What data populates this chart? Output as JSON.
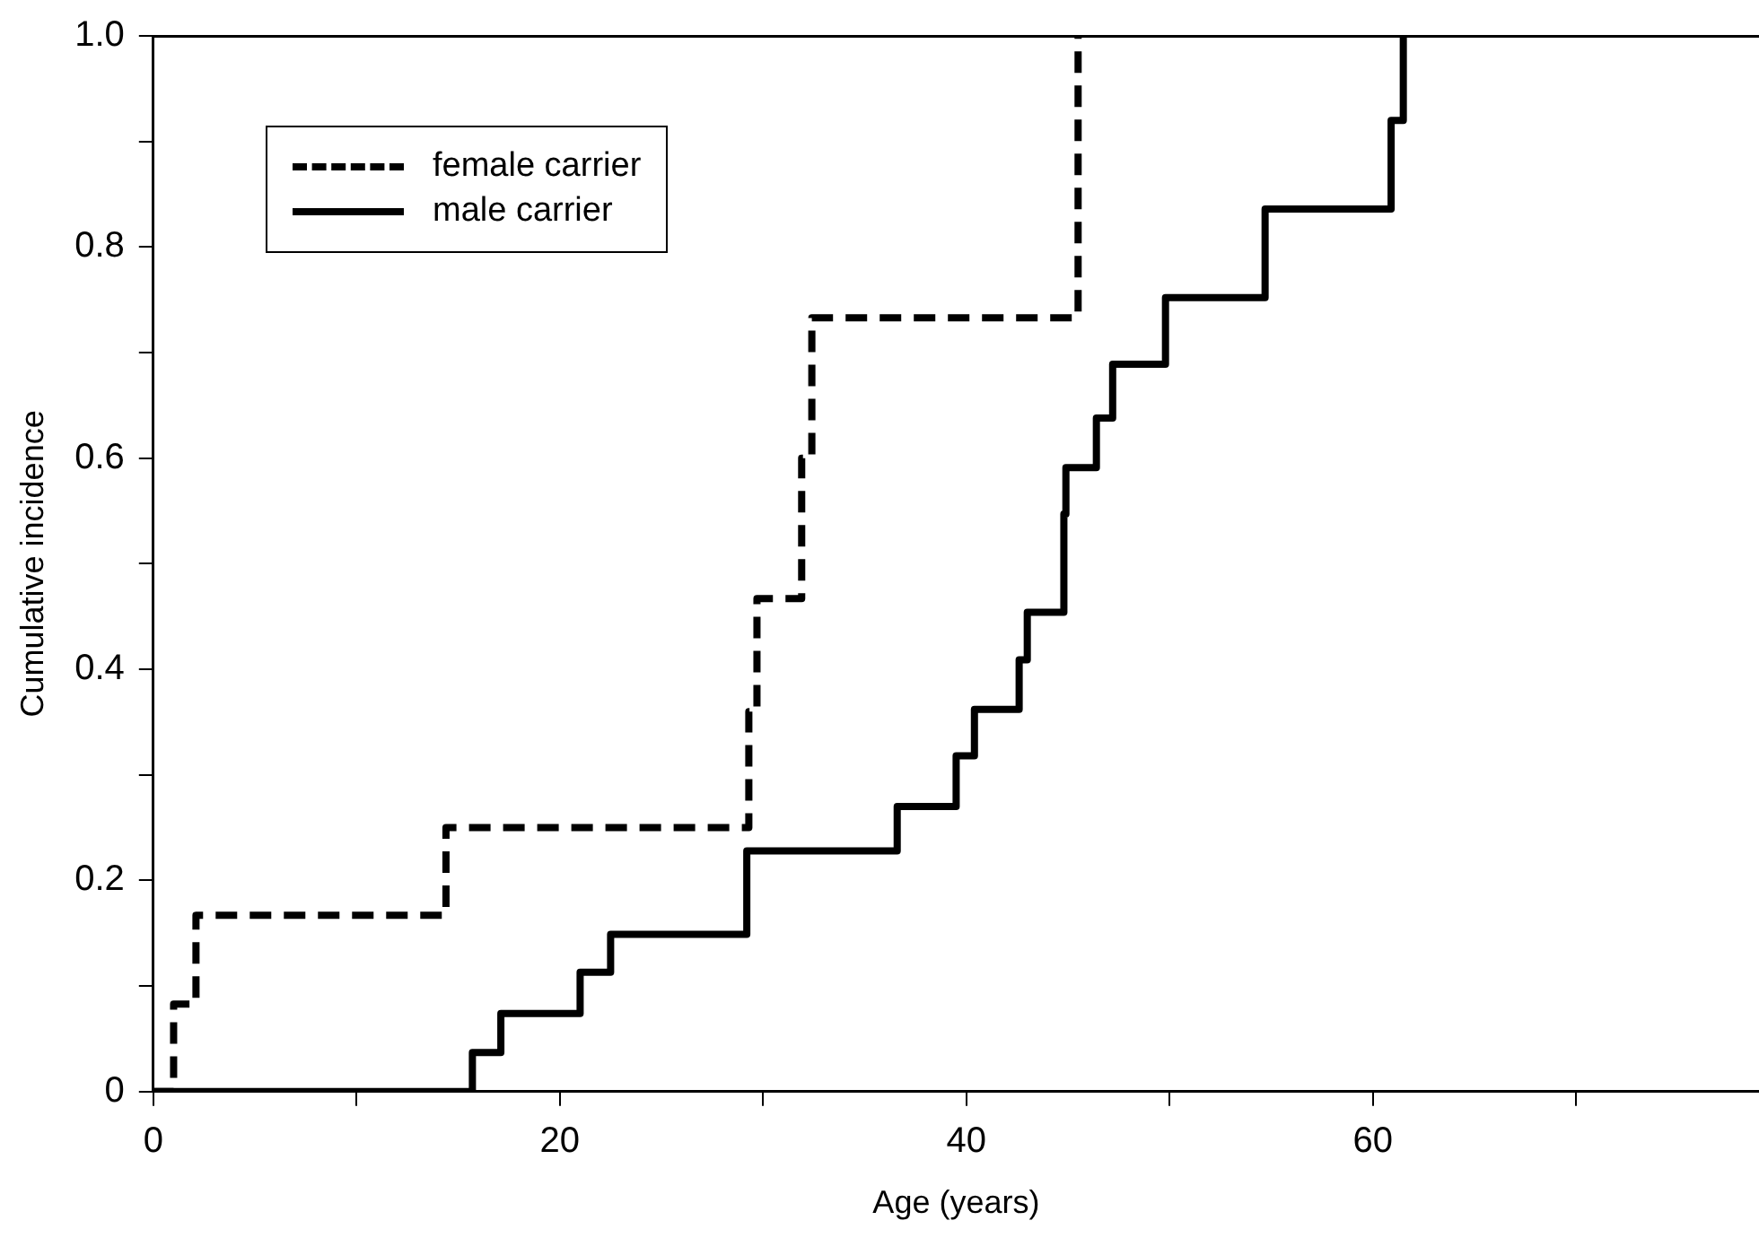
{
  "chart_data": {
    "type": "step",
    "xlabel": "Age (years)",
    "ylabel": "Cumulative incidence",
    "xlim": [
      0,
      79
    ],
    "xticks": [
      0,
      {
        "value": 10,
        "label": null
      },
      20,
      {
        "value": 30,
        "label": null
      },
      40,
      {
        "value": 50,
        "label": null
      },
      60,
      {
        "value": 70,
        "label": null
      }
    ],
    "ylim": [
      0,
      1
    ],
    "yticks": [
      0,
      {
        "value": 0.1,
        "label": null
      },
      0.2,
      {
        "value": 0.3,
        "label": null
      },
      0.4,
      {
        "value": 0.5,
        "label": null
      },
      0.6,
      {
        "value": 0.7,
        "label": null
      },
      0.8,
      {
        "value": 0.9,
        "label": null
      },
      {
        "value": 1,
        "label": "1.0"
      }
    ],
    "grid": false,
    "legend": "top left",
    "marker": "none",
    "series": [
      {
        "name": "female carrier",
        "color": "#000000",
        "line_style": "dashed",
        "x": [
          0,
          1.0,
          2.1,
          14.4,
          29.3,
          29.7,
          31.9,
          32.4,
          45.5
        ],
        "values": [
          0,
          0.083,
          0.167,
          0.25,
          0.36,
          0.467,
          0.6,
          0.733,
          1.0
        ]
      },
      {
        "name": "male carrier",
        "color": "#000000",
        "line_style": "solid",
        "x": [
          0,
          15.7,
          17.1,
          21.0,
          22.5,
          29.2,
          36.6,
          39.5,
          40.4,
          42.6,
          43.0,
          44.8,
          44.9,
          46.4,
          47.2,
          49.8,
          54.7,
          60.9,
          61.5
        ],
        "values": [
          0,
          0.037,
          0.074,
          0.113,
          0.149,
          0.228,
          0.27,
          0.318,
          0.362,
          0.409,
          0.454,
          0.547,
          0.591,
          0.638,
          0.689,
          0.752,
          0.836,
          0.92,
          1.0
        ]
      }
    ]
  }
}
